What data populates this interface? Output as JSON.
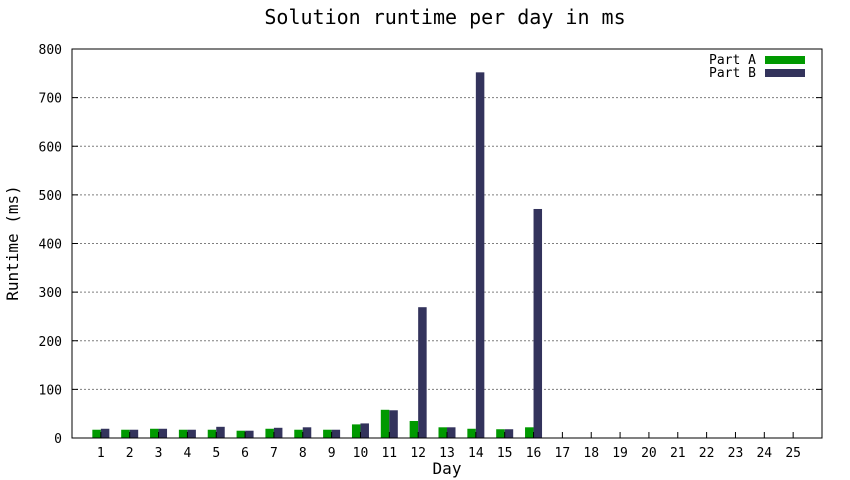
{
  "chart_data": {
    "type": "bar",
    "title": "Solution runtime per day in ms",
    "xlabel": "Day",
    "ylabel": "Runtime (ms)",
    "ylim": [
      0,
      800
    ],
    "yticks": [
      0,
      100,
      200,
      300,
      400,
      500,
      600,
      700,
      800
    ],
    "grid": "horizontal dashed",
    "legend_position": "top-right",
    "categories": [
      "1",
      "2",
      "3",
      "4",
      "5",
      "6",
      "7",
      "8",
      "9",
      "10",
      "11",
      "12",
      "13",
      "14",
      "15",
      "16",
      "17",
      "18",
      "19",
      "20",
      "21",
      "22",
      "23",
      "24",
      "25"
    ],
    "series": [
      {
        "name": "Part A",
        "color": "#009900",
        "values": [
          17,
          17,
          19,
          17,
          17,
          15,
          19,
          17,
          17,
          28,
          58,
          35,
          22,
          19,
          18,
          22,
          null,
          null,
          null,
          null,
          null,
          null,
          null,
          null,
          null
        ]
      },
      {
        "name": "Part B",
        "color": "#33335c",
        "values": [
          19,
          17,
          19,
          17,
          23,
          15,
          21,
          22,
          17,
          30,
          57,
          269,
          22,
          752,
          18,
          471,
          null,
          null,
          null,
          null,
          null,
          null,
          null,
          null,
          null
        ]
      }
    ]
  }
}
